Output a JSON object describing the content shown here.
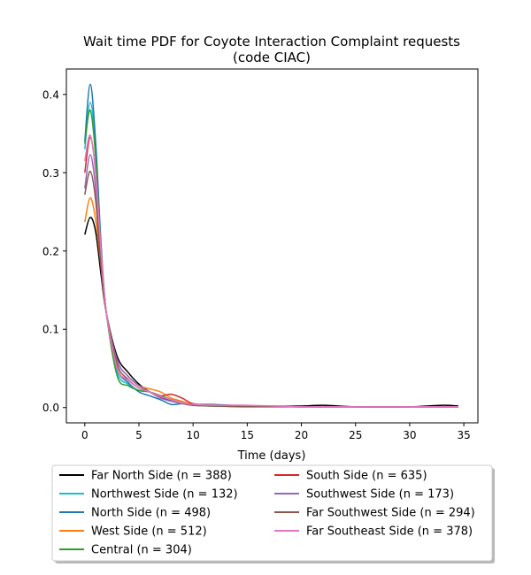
{
  "chart_data": {
    "type": "line",
    "title_line1": "Wait time PDF for Coyote Interaction Complaint  requests",
    "title_line2": "(code CIAC)",
    "xlabel": "Time (days)",
    "ylabel": "",
    "xlim": [
      -1.7,
      36.3
    ],
    "ylim": [
      -0.0195,
      0.4325
    ],
    "xticks": [
      0,
      5,
      10,
      15,
      20,
      25,
      30,
      35
    ],
    "yticks": [
      0.0,
      0.1,
      0.2,
      0.3,
      0.4
    ],
    "xtick_labels": [
      "0",
      "5",
      "10",
      "15",
      "20",
      "25",
      "30",
      "35"
    ],
    "ytick_labels": [
      "0.0",
      "0.1",
      "0.2",
      "0.3",
      "0.4"
    ],
    "legend_position": "lower-center-outside",
    "x": [
      0,
      0.5,
      1,
      1.5,
      2,
      3,
      4,
      5,
      6,
      7,
      8,
      9,
      10,
      12,
      15,
      20,
      22,
      25,
      30,
      33,
      34.5
    ],
    "series": [
      {
        "name": "Far North Side",
        "legend": "Far North Side (n = 388)",
        "color": "#000000",
        "values": [
          0.221,
          0.243,
          0.225,
          0.17,
          0.12,
          0.065,
          0.045,
          0.03,
          0.02,
          0.013,
          0.009,
          0.006,
          0.004,
          0.003,
          0.002,
          0.002,
          0.003,
          0.001,
          0.001,
          0.003,
          0.002
        ]
      },
      {
        "name": "Northwest Side",
        "legend": "Northwest Side (n = 132)",
        "color": "#17becf",
        "values": [
          0.33,
          0.39,
          0.33,
          0.2,
          0.12,
          0.045,
          0.03,
          0.022,
          0.02,
          0.015,
          0.01,
          0.006,
          0.003,
          0.002,
          0.002,
          0.001,
          0.001,
          0.001,
          0.001,
          0.001,
          0.001
        ]
      },
      {
        "name": "North Side",
        "legend": "North Side (n = 498)",
        "color": "#1f77b4",
        "values": [
          0.34,
          0.413,
          0.34,
          0.21,
          0.12,
          0.05,
          0.032,
          0.02,
          0.015,
          0.01,
          0.004,
          0.005,
          0.004,
          0.004,
          0.002,
          0.001,
          0.001,
          0.001,
          0.001,
          0.001,
          0.001
        ]
      },
      {
        "name": "West Side",
        "legend": "West Side (n = 512)",
        "color": "#ff7f0e",
        "values": [
          0.237,
          0.268,
          0.24,
          0.18,
          0.12,
          0.06,
          0.04,
          0.028,
          0.024,
          0.02,
          0.012,
          0.008,
          0.004,
          0.003,
          0.002,
          0.001,
          0.001,
          0.001,
          0.001,
          0.001,
          0.001
        ]
      },
      {
        "name": "Central",
        "legend": "Central (n = 304)",
        "color": "#2ca02c",
        "values": [
          0.337,
          0.38,
          0.32,
          0.2,
          0.12,
          0.04,
          0.028,
          0.022,
          0.02,
          0.015,
          0.01,
          0.006,
          0.003,
          0.002,
          0.002,
          0.001,
          0.001,
          0.001,
          0.001,
          0.001,
          0.001
        ]
      },
      {
        "name": "South Side",
        "legend": "South Side (n = 635)",
        "color": "#d62728",
        "values": [
          0.3,
          0.345,
          0.3,
          0.2,
          0.12,
          0.05,
          0.035,
          0.025,
          0.02,
          0.015,
          0.017,
          0.012,
          0.005,
          0.003,
          0.002,
          0.001,
          0.001,
          0.001,
          0.001,
          0.001,
          0.001
        ]
      },
      {
        "name": "Southwest Side",
        "legend": "Southwest Side (n = 173)",
        "color": "#9467bd",
        "values": [
          0.28,
          0.323,
          0.28,
          0.19,
          0.12,
          0.06,
          0.04,
          0.028,
          0.02,
          0.012,
          0.008,
          0.005,
          0.003,
          0.003,
          0.002,
          0.001,
          0.001,
          0.001,
          0.001,
          0.001,
          0.001
        ]
      },
      {
        "name": "Far Southwest Side",
        "legend": "Far Southwest Side (n = 294)",
        "color": "#8c564b",
        "values": [
          0.272,
          0.302,
          0.265,
          0.18,
          0.12,
          0.055,
          0.036,
          0.025,
          0.02,
          0.014,
          0.01,
          0.006,
          0.003,
          0.002,
          0.001,
          0.001,
          0.001,
          0.001,
          0.001,
          0.001,
          0.001
        ]
      },
      {
        "name": "Far Southeast Side",
        "legend": "Far Southeast Side (n = 378)",
        "color": "#e377c2",
        "values": [
          0.315,
          0.348,
          0.3,
          0.2,
          0.12,
          0.05,
          0.035,
          0.025,
          0.02,
          0.014,
          0.01,
          0.006,
          0.004,
          0.003,
          0.003,
          0.001,
          0.001,
          0.001,
          0.001,
          0.001,
          0.001
        ]
      }
    ]
  }
}
